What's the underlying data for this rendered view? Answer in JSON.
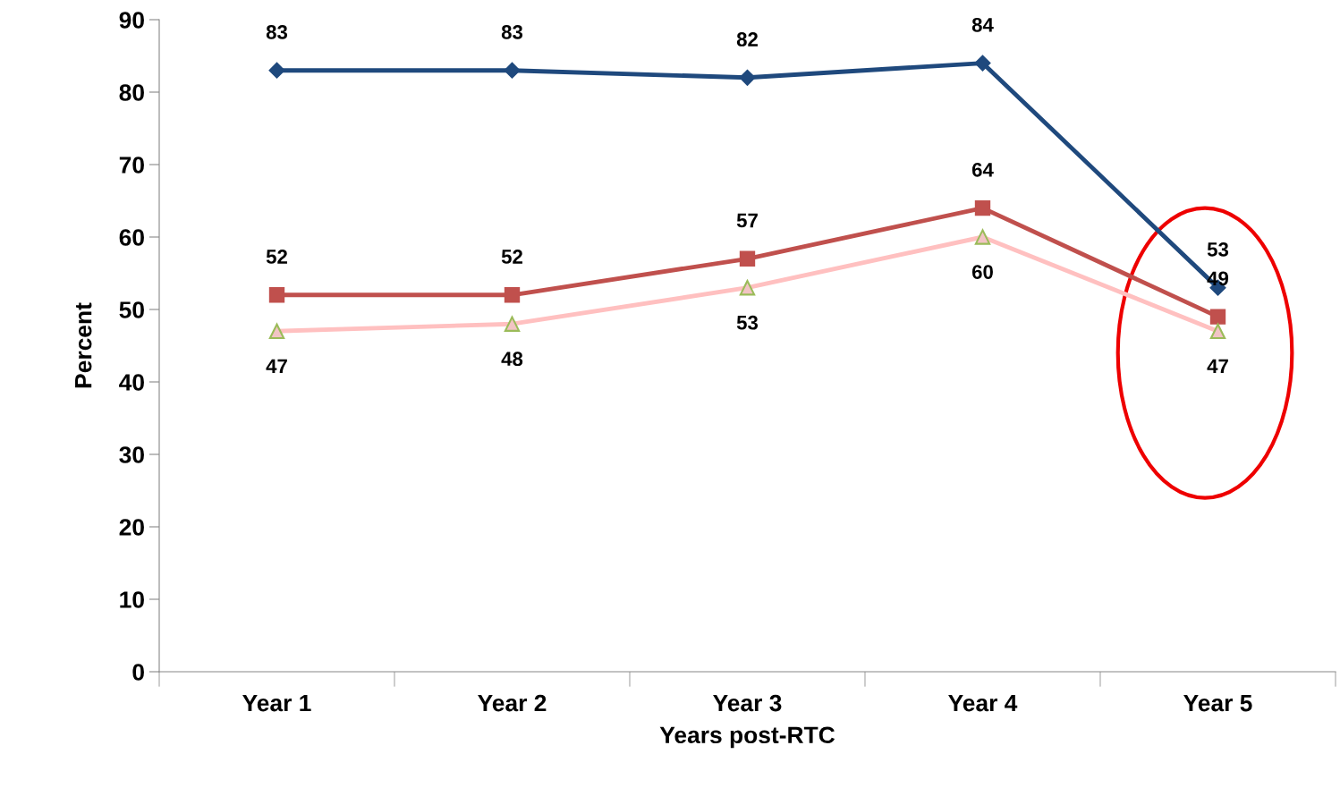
{
  "chart_data": {
    "type": "line",
    "xlabel": "Years post-RTC",
    "ylabel": "Percent",
    "categories": [
      "Year 1",
      "Year 2",
      "Year 3",
      "Year 4",
      "Year 5"
    ],
    "series": [
      {
        "color": "#1f497d",
        "marker": "diamond",
        "values": [
          83,
          83,
          82,
          84,
          53
        ]
      },
      {
        "color": "#c0504d",
        "marker": "square",
        "values": [
          52,
          52,
          57,
          64,
          49
        ]
      },
      {
        "color": "#ffc0c0",
        "marker": "triangle",
        "values": [
          47,
          48,
          53,
          60,
          47
        ]
      }
    ],
    "ylim": [
      0,
      90
    ],
    "yticks": [
      0,
      10,
      20,
      30,
      40,
      50,
      60,
      70,
      80,
      90
    ],
    "grid": false,
    "legend": false,
    "data_labels": true
  }
}
